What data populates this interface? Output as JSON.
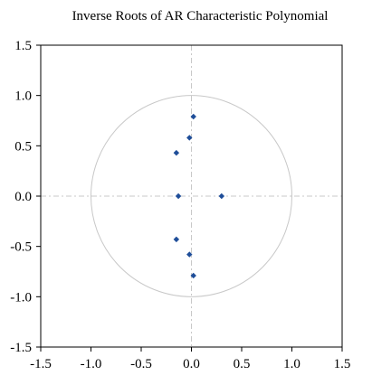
{
  "chart_data": {
    "type": "scatter",
    "title": "Inverse Roots of AR Characteristic Polynomial",
    "xlabel": "",
    "ylabel": "",
    "xlim": [
      -1.5,
      1.5
    ],
    "ylim": [
      -1.5,
      1.5
    ],
    "x_ticks": [
      "-1.5",
      "-1.0",
      "-0.5",
      "0.0",
      "0.5",
      "1.0",
      "1.5"
    ],
    "y_ticks": [
      "1.5",
      "1.0",
      "0.5",
      "0.0",
      "-0.5",
      "-1.0",
      "-1.5"
    ],
    "x_tick_values": [
      -1.5,
      -1.0,
      -0.5,
      0.0,
      0.5,
      1.0,
      1.5
    ],
    "y_tick_values": [
      1.5,
      1.0,
      0.5,
      0.0,
      -0.5,
      -1.0,
      -1.5
    ],
    "unit_circle_radius": 1.0,
    "reference_lines": {
      "x": 0,
      "y": 0
    },
    "grid": false,
    "legend": "none",
    "colors": {
      "points": "#1f4e99",
      "circle": "#c8c8c8",
      "reference": "#c8c8c8",
      "frame": "#000000"
    },
    "points": [
      {
        "x": 0.02,
        "y": 0.79
      },
      {
        "x": -0.02,
        "y": 0.58
      },
      {
        "x": -0.15,
        "y": 0.43
      },
      {
        "x": -0.13,
        "y": 0.0
      },
      {
        "x": 0.3,
        "y": 0.0
      },
      {
        "x": -0.15,
        "y": -0.43
      },
      {
        "x": -0.02,
        "y": -0.58
      },
      {
        "x": 0.02,
        "y": -0.79
      }
    ]
  }
}
